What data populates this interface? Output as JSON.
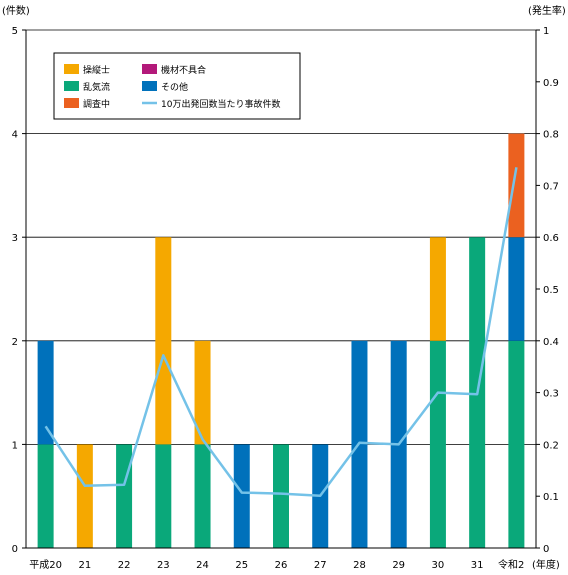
{
  "chart_data": {
    "type": "bar",
    "stacked": true,
    "categories": [
      "平成20",
      "21",
      "22",
      "23",
      "24",
      "25",
      "26",
      "27",
      "28",
      "29",
      "30",
      "31",
      "令和2"
    ],
    "xlabel_suffix": "(年度)",
    "ylabel_left": "(件数)",
    "ylabel_right": "(発生率)",
    "ylim_left": [
      0,
      5
    ],
    "ylim_right": [
      0,
      1
    ],
    "yticks_left": [
      "0",
      "1",
      "2",
      "3",
      "4",
      "5"
    ],
    "yticks_right": [
      "0",
      "0.1",
      "0.2",
      "0.3",
      "0.4",
      "0.5",
      "0.6",
      "0.7",
      "0.8",
      "0.9",
      "1"
    ],
    "grid": "horizontal at each integer count",
    "legend_position": "top-left",
    "series": [
      {
        "name": "乱気流",
        "color": "#0aa87a",
        "values": [
          1,
          0,
          1,
          1,
          1,
          0,
          1,
          0,
          0,
          0,
          2,
          3,
          2
        ]
      },
      {
        "name": "操縦士",
        "color": "#f5a800",
        "values": [
          0,
          1,
          0,
          2,
          1,
          0,
          0,
          0,
          0,
          0,
          1,
          0,
          0
        ]
      },
      {
        "name": "その他",
        "color": "#0071bb",
        "values": [
          1,
          0,
          0,
          0,
          0,
          1,
          0,
          1,
          2,
          2,
          0,
          0,
          1
        ]
      },
      {
        "name": "機材不具合",
        "color": "#b3197a",
        "values": [
          0,
          0,
          0,
          0,
          0,
          0,
          0,
          0,
          0,
          0,
          0,
          0,
          0
        ]
      },
      {
        "name": "調査中",
        "color": "#eb6120",
        "values": [
          0,
          0,
          0,
          0,
          0,
          0,
          0,
          0,
          0,
          0,
          0,
          0,
          1
        ]
      }
    ],
    "line_series": {
      "name": "10万出発回数当たり事故件数",
      "color": "#74c2e8",
      "axis": "right",
      "values": [
        0.235,
        0.12,
        0.122,
        0.372,
        0.21,
        0.107,
        0.105,
        0.101,
        0.203,
        0.2,
        0.3,
        0.297,
        0.735
      ]
    },
    "legend": [
      {
        "label": "操縦士",
        "color": "#f5a800",
        "kind": "box"
      },
      {
        "label": "機材不具合",
        "color": "#b3197a",
        "kind": "box"
      },
      {
        "label": "乱気流",
        "color": "#0aa87a",
        "kind": "box"
      },
      {
        "label": "その他",
        "color": "#0071bb",
        "kind": "box"
      },
      {
        "label": "調査中",
        "color": "#eb6120",
        "kind": "box"
      },
      {
        "label": "10万出発回数当たり事故件数",
        "color": "#74c2e8",
        "kind": "line"
      }
    ]
  }
}
